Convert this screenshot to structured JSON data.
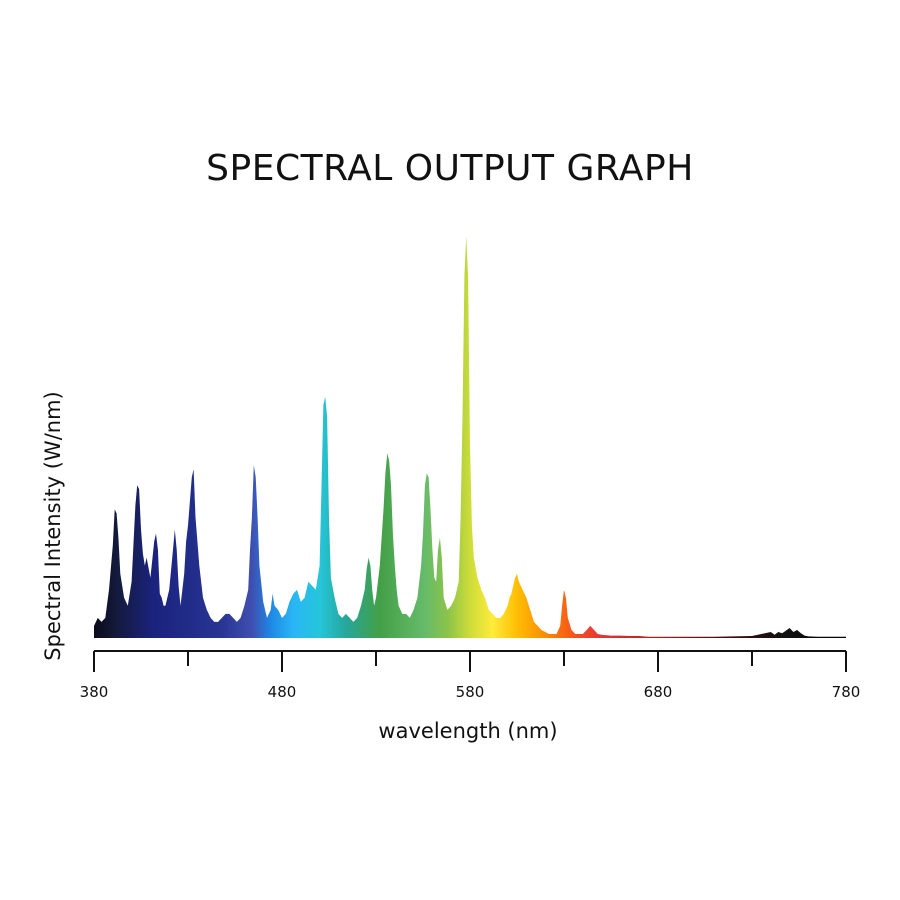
{
  "chart_data": {
    "type": "area",
    "title": "SPECTRAL OUTPUT GRAPH",
    "xlabel": "wavelength (nm)",
    "ylabel": "Spectral Intensity (W/nm)",
    "xlim": [
      380,
      780
    ],
    "ylim": [
      0,
      100
    ],
    "x_tick_labels": [
      "380",
      "480",
      "580",
      "680",
      "780"
    ],
    "x_ticks_major": [
      380,
      480,
      580,
      680,
      780
    ],
    "x_ticks_minor": [
      430,
      530,
      630,
      730
    ],
    "series": [
      {
        "color": "spectral-gradient",
        "x": [
          380,
          382,
          384,
          386,
          388,
          390,
          391,
          392,
          393,
          394,
          396,
          398,
          400,
          402,
          403,
          404,
          405,
          406,
          407,
          408,
          410,
          412,
          413,
          414,
          415,
          416,
          417,
          418,
          420,
          422,
          423,
          424,
          425,
          426,
          428,
          429,
          430,
          431,
          432,
          433,
          434,
          436,
          438,
          440,
          442,
          444,
          446,
          448,
          450,
          452,
          454,
          456,
          458,
          460,
          462,
          463,
          464,
          465,
          466,
          467,
          468,
          470,
          472,
          474,
          475,
          476,
          478,
          480,
          482,
          484,
          486,
          488,
          490,
          492,
          494,
          496,
          498,
          500,
          501,
          502,
          503,
          504,
          505,
          506,
          508,
          510,
          512,
          514,
          516,
          518,
          520,
          522,
          524,
          525,
          526,
          527,
          528,
          529,
          530,
          532,
          534,
          535,
          536,
          537,
          538,
          539,
          540,
          541,
          542,
          544,
          546,
          548,
          550,
          552,
          554,
          555,
          556,
          557,
          558,
          559,
          560,
          561,
          562,
          563,
          564,
          565,
          566,
          568,
          570,
          572,
          574,
          575,
          576,
          577,
          578,
          579,
          580,
          581,
          582,
          584,
          586,
          588,
          590,
          592,
          594,
          596,
          598,
          600,
          601,
          602,
          603,
          604,
          605,
          606,
          608,
          610,
          612,
          614,
          616,
          618,
          620,
          622,
          624,
          626,
          628,
          629,
          630,
          631,
          632,
          634,
          636,
          638,
          640,
          642,
          644,
          646,
          648,
          650,
          655,
          660,
          665,
          670,
          675,
          680,
          690,
          700,
          710,
          720,
          730,
          735,
          740,
          742,
          744,
          746,
          748,
          750,
          752,
          754,
          756,
          758,
          760,
          765,
          770,
          775,
          780
        ],
        "y": [
          3,
          5,
          4,
          5,
          12,
          23,
          32,
          31,
          25,
          16,
          10,
          8,
          14,
          33,
          38,
          37,
          27,
          21,
          18,
          20,
          15,
          24,
          26,
          22,
          11,
          10,
          8,
          8,
          12,
          22,
          27,
          22,
          13,
          8,
          16,
          24,
          28,
          34,
          40,
          42,
          30,
          18,
          10,
          7,
          5,
          4,
          4,
          5,
          6,
          6,
          5,
          4,
          5,
          8,
          12,
          22,
          30,
          43,
          40,
          30,
          18,
          9,
          5,
          7,
          11,
          8,
          7,
          5,
          6,
          9,
          11,
          12,
          9,
          10,
          14,
          13,
          12,
          18,
          38,
          58,
          60,
          55,
          30,
          15,
          10,
          6,
          5,
          6,
          5,
          4,
          5,
          8,
          12,
          17,
          20,
          18,
          12,
          8,
          10,
          18,
          32,
          41,
          46,
          44,
          38,
          26,
          18,
          12,
          8,
          6,
          6,
          5,
          7,
          10,
          18,
          26,
          38,
          41,
          40,
          32,
          22,
          15,
          14,
          22,
          25,
          20,
          10,
          7,
          8,
          10,
          14,
          30,
          55,
          90,
          100,
          90,
          48,
          28,
          20,
          15,
          12,
          10,
          7,
          6,
          5,
          5,
          6,
          8,
          10,
          11,
          13,
          15,
          16,
          14,
          12,
          10,
          7,
          4,
          3,
          2,
          1.5,
          1,
          1,
          1,
          3,
          8,
          12,
          10,
          5,
          2,
          1,
          1,
          1,
          2,
          3,
          2,
          1,
          0.8,
          0.6,
          0.6,
          0.5,
          0.5,
          0.3,
          0.3,
          0.3,
          0.3,
          0.3,
          0.4,
          0.5,
          1,
          1.5,
          0.8,
          1.5,
          1.2,
          1.8,
          2.5,
          1.5,
          2,
          1.2,
          0.6,
          0.4,
          0.3,
          0.3,
          0.3,
          0.3
        ]
      }
    ],
    "grid": false,
    "legend": "none"
  }
}
